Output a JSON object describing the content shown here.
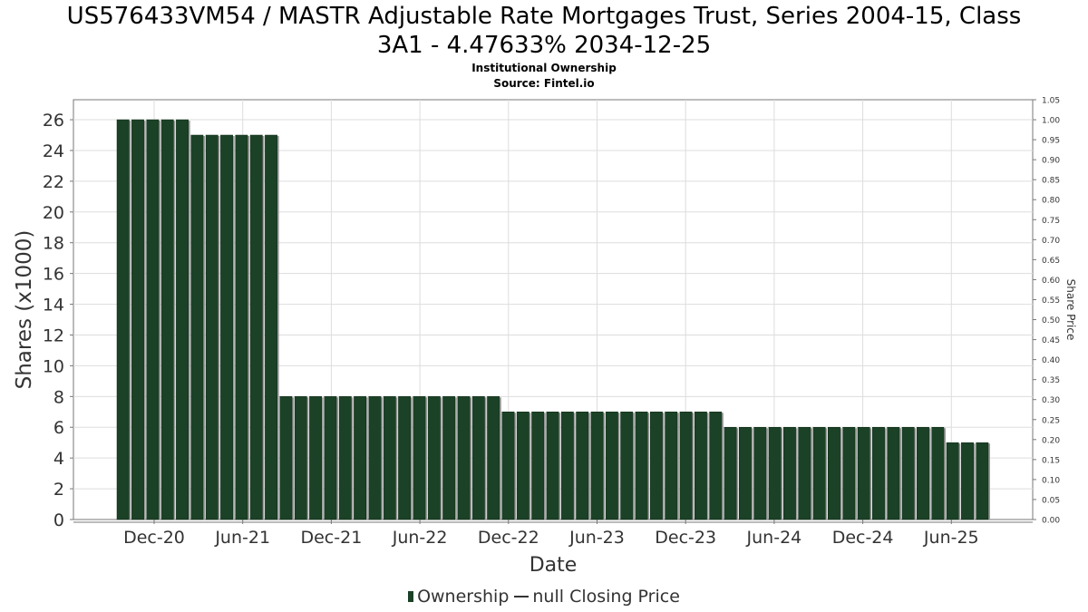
{
  "header": {
    "title_line1": "US576433VM54 / MASTR Adjustable Rate Mortgages Trust, Series 2004-15, Class",
    "title_line2": "3A1 - 4.47633% 2034-12-25",
    "subtitle": "Institutional Ownership",
    "source": "Source: Fintel.io"
  },
  "legend": {
    "ownership": "Ownership",
    "price": "null Closing Price"
  },
  "colors": {
    "bar": "#1b4226",
    "bar_shadow": "#9a9a9a",
    "grid": "#dddddd",
    "axis": "#777777"
  },
  "chart_data": {
    "type": "bar",
    "xlabel": "Date",
    "ylabel": "Shares (x1000)",
    "y2label": "Share Price",
    "ylim": [
      0,
      27.3
    ],
    "y2lim": [
      0,
      1.05
    ],
    "yticks": [
      "0",
      "2",
      "4",
      "6",
      "8",
      "10",
      "12",
      "14",
      "16",
      "18",
      "20",
      "22",
      "24",
      "26"
    ],
    "y2ticks": [
      "0.00",
      "0.05",
      "0.10",
      "0.15",
      "0.20",
      "0.25",
      "0.30",
      "0.35",
      "0.40",
      "0.45",
      "0.50",
      "0.55",
      "0.60",
      "0.65",
      "0.70",
      "0.75",
      "0.80",
      "0.85",
      "0.90",
      "0.95",
      "1.00",
      "1.05"
    ],
    "xticks": [
      "Dec-20",
      "Jun-21",
      "Dec-21",
      "Jun-22",
      "Dec-22",
      "Jun-23",
      "Dec-23",
      "Jun-24",
      "Dec-24",
      "Jun-25"
    ],
    "grid": true,
    "series": [
      {
        "name": "Ownership",
        "values": [
          26,
          26,
          26,
          26,
          26,
          25,
          25,
          25,
          25,
          25,
          25,
          8,
          8,
          8,
          8,
          8,
          8,
          8,
          8,
          8,
          8,
          8,
          8,
          8,
          8,
          8,
          7,
          7,
          7,
          7,
          7,
          7,
          7,
          7,
          7,
          7,
          7,
          7,
          7,
          7,
          7,
          6,
          6,
          6,
          6,
          6,
          6,
          6,
          6,
          6,
          6,
          6,
          6,
          6,
          6,
          6,
          5,
          5,
          5
        ]
      }
    ]
  }
}
